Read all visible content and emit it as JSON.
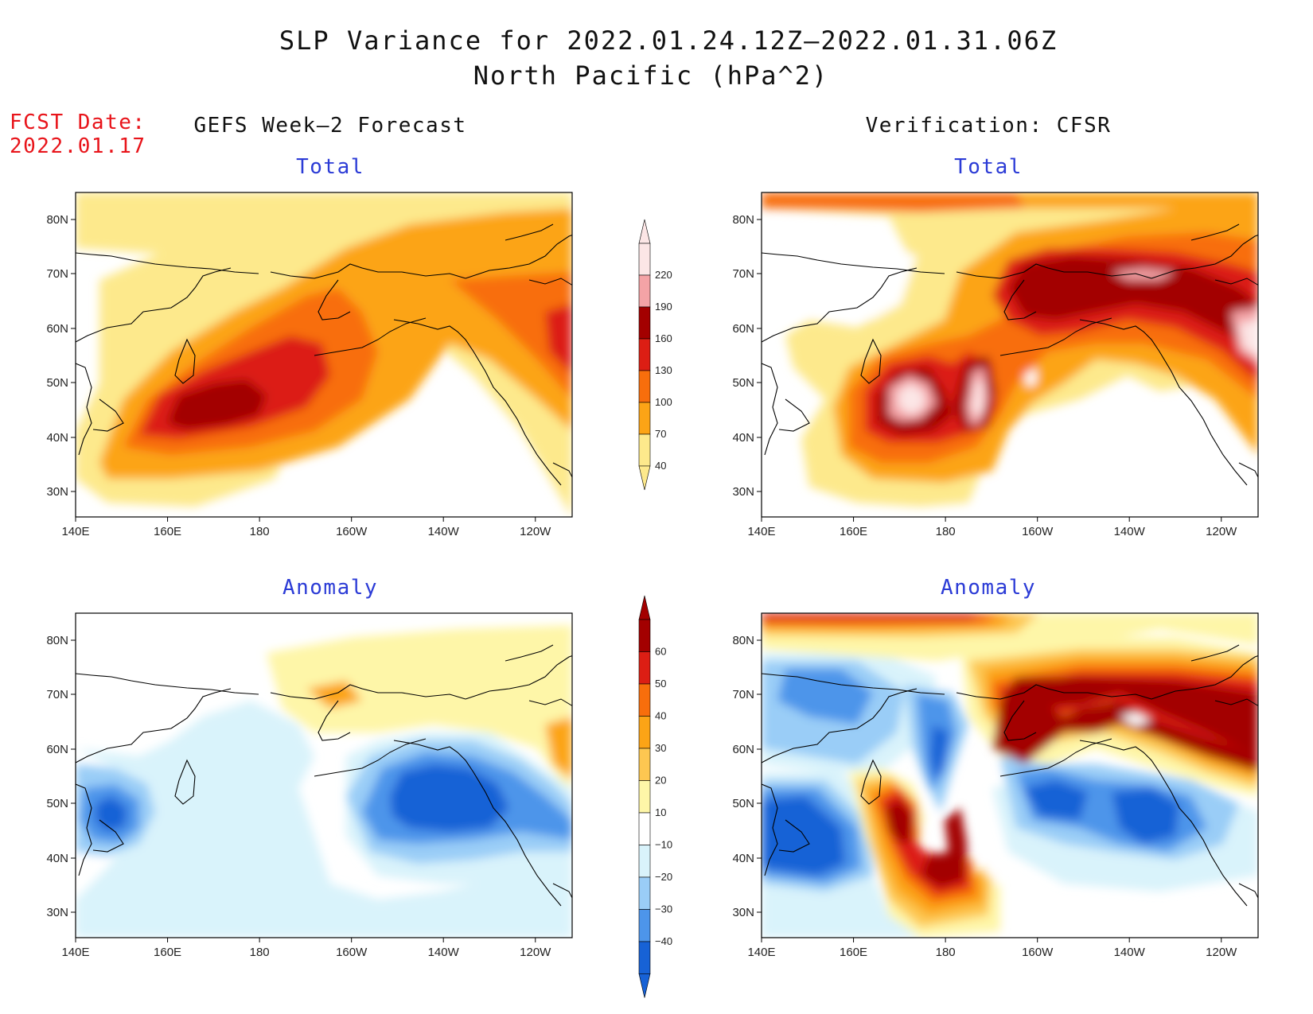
{
  "title": {
    "line1": "SLP Variance for 2022.01.24.12Z–2022.01.31.06Z",
    "line2": "North Pacific (hPa^2)"
  },
  "fcst_date": {
    "label": "FCST Date:",
    "value": "2022.01.17"
  },
  "columns": {
    "left": "GEFS Week–2 Forecast",
    "right": "Verification: CFSR"
  },
  "colors": {
    "subtitle": "#2b3bd6",
    "fcst": "#e8141a"
  },
  "axes": {
    "x_ticks": [
      "140E",
      "160E",
      "180",
      "160W",
      "140W",
      "120W"
    ],
    "y_ticks": [
      "80N",
      "70N",
      "60N",
      "50N",
      "40N",
      "30N"
    ]
  },
  "colorbars": {
    "total": {
      "levels": [
        "220",
        "190",
        "160",
        "130",
        "100",
        "70",
        "40"
      ],
      "colors": [
        "#fce6e6",
        "#f4a3a6",
        "#a30000",
        "#dc1e14",
        "#f86e0c",
        "#fca416",
        "#fde98c"
      ]
    },
    "anomaly": {
      "levels": [
        "60",
        "50",
        "40",
        "30",
        "20",
        "10",
        "−10",
        "−20",
        "−30",
        "−40"
      ],
      "colors": [
        "#a30000",
        "#dc1e14",
        "#f86e0c",
        "#fca416",
        "#fdc751",
        "#fef6a8",
        "#ffffff",
        "#d9f3fb",
        "#9acdf7",
        "#4d95ea",
        "#1762d6"
      ]
    }
  },
  "panels": [
    {
      "id": "forecast-total",
      "subtitle": "Total",
      "scale": "total"
    },
    {
      "id": "verification-total",
      "subtitle": "Total",
      "scale": "total"
    },
    {
      "id": "forecast-anomaly",
      "subtitle": "Anomaly",
      "scale": "anomaly"
    },
    {
      "id": "verification-anomaly",
      "subtitle": "Anomaly",
      "scale": "anomaly"
    }
  ]
}
